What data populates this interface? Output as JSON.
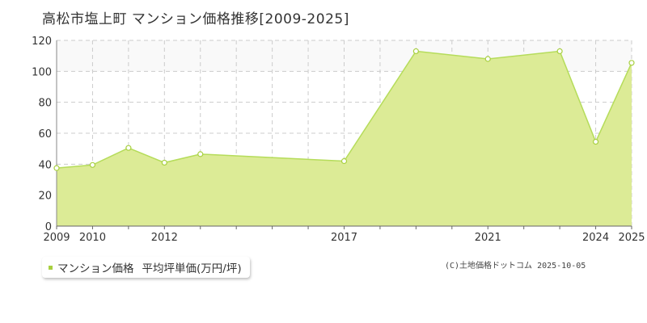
{
  "title": "高松市塩上町 マンション価格推移[2009-2025]",
  "legend": {
    "series_label": "マンション価格",
    "unit_label": "平均坪単価(万円/坪)"
  },
  "copyright": "(C)土地価格ドットコム 2025-10-05",
  "colors": {
    "fill": "#dceb96",
    "line": "#b5dc5a",
    "marker": "#a8d040",
    "band": "#f9f9f9",
    "grid": "#cccccc"
  },
  "chart_data": {
    "type": "area",
    "title": "高松市塩上町 マンション価格推移[2009-2025]",
    "xlabel": "",
    "ylabel": "",
    "ylim": [
      0,
      120
    ],
    "yticks": [
      0,
      20,
      40,
      60,
      80,
      100,
      120
    ],
    "xlim": [
      2009,
      2025
    ],
    "xtick_labels": [
      "2009",
      "2010",
      "2012",
      "2017",
      "2021",
      "2024",
      "2025"
    ],
    "grid": true,
    "legend_position": "bottom-left",
    "series": [
      {
        "name": "マンション価格 平均坪単価(万円/坪)",
        "points": [
          {
            "x": 2009,
            "y": 37.5
          },
          {
            "x": 2010,
            "y": 39.5
          },
          {
            "x": 2011,
            "y": 50.5
          },
          {
            "x": 2012,
            "y": 41.0
          },
          {
            "x": 2013,
            "y": 46.5
          },
          {
            "x": 2017,
            "y": 42.0
          },
          {
            "x": 2019,
            "y": 113.0
          },
          {
            "x": 2021,
            "y": 108.0
          },
          {
            "x": 2023,
            "y": 113.0
          },
          {
            "x": 2024,
            "y": 54.5
          },
          {
            "x": 2025,
            "y": 105.5
          }
        ]
      }
    ]
  }
}
